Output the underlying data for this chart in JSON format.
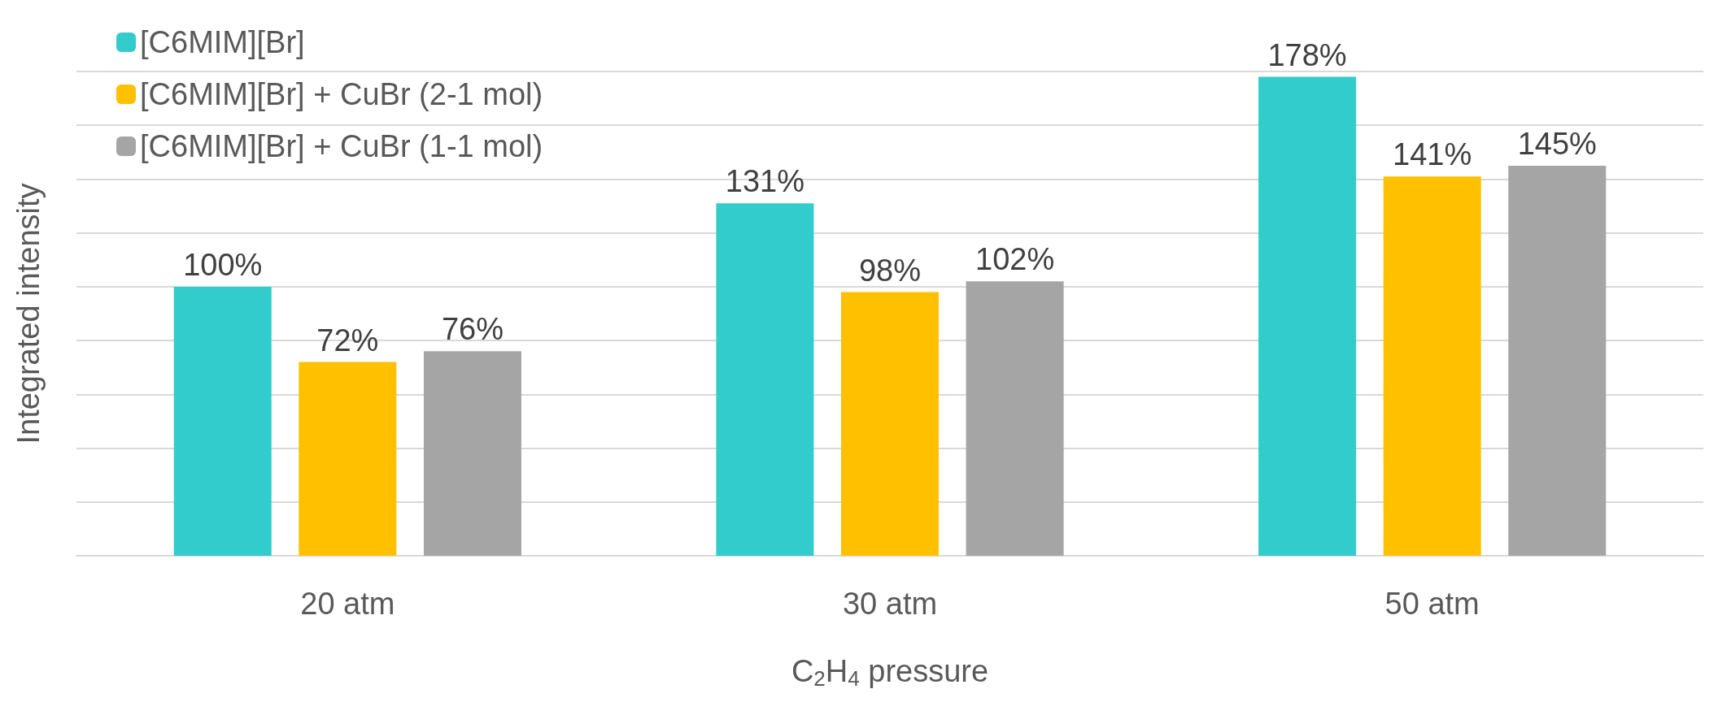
{
  "chart_data": {
    "type": "bar",
    "xlabel": "C$_{2}$H$_{4}$ pressure",
    "ylabel": "Integrated intensity",
    "categories": [
      "20 atm",
      "30 atm",
      "50 atm"
    ],
    "series": [
      {
        "name": "[C6MIM][Br]",
        "color": "#33cccc",
        "values": [
          100,
          131,
          178
        ],
        "value_labels": [
          "100%",
          "131%",
          "178%"
        ]
      },
      {
        "name": "[C6MIM][Br] + CuBr (2-1 mol)",
        "color": "#ffc000",
        "values": [
          72,
          98,
          141
        ],
        "value_labels": [
          "72%",
          "98%",
          "141%"
        ]
      },
      {
        "name": "[C6MIM][Br] + CuBr (1-1 mol)",
        "color": "#a5a5a5",
        "values": [
          76,
          102,
          145
        ],
        "value_labels": [
          "76%",
          "102%",
          "145%"
        ]
      }
    ],
    "ylim": [
      0,
      180
    ],
    "yticks": [
      {
        "value": 0,
        "label": null
      },
      {
        "value": 20,
        "label": null
      },
      {
        "value": 40,
        "label": null
      },
      {
        "value": 60,
        "label": null
      },
      {
        "value": 80,
        "label": null
      },
      {
        "value": 100,
        "label": null
      },
      {
        "value": 120,
        "label": null
      },
      {
        "value": 140,
        "label": null
      },
      {
        "value": 160,
        "label": null
      },
      {
        "value": 180,
        "label": null
      }
    ],
    "grid": "y",
    "legend": "top left",
    "tick_labels": "x"
  }
}
